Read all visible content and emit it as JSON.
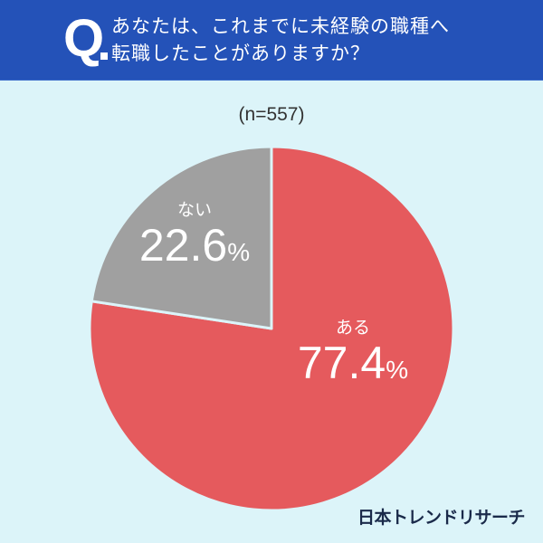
{
  "header": {
    "q_label": "Q",
    "question_line1": "あなたは、これまでに未経験の職種へ",
    "question_line2": "転職したことがありますか？"
  },
  "sample_size": "(n=557)",
  "labels": {
    "no": {
      "name": "ない",
      "value": "22.6",
      "unit": "%"
    },
    "yes": {
      "name": "ある",
      "value": "77.4",
      "unit": "%"
    }
  },
  "brand": "日本トレンドリサーチ",
  "colors": {
    "header": "#2452b8",
    "background": "#dcf4f9",
    "yes": "#e55a5d",
    "no": "#a0a0a0"
  },
  "chart_data": {
    "type": "pie",
    "title": "あなたは、これまでに未経験の職種へ転職したことがありますか？",
    "subtitle": "(n=557)",
    "categories": [
      "ある",
      "ない"
    ],
    "values": [
      77.4,
      22.6
    ],
    "unit": "%",
    "colors": [
      "#e55a5d",
      "#a0a0a0"
    ],
    "start_angle": "12 o'clock, clockwise",
    "legend": "none (labels inside slices)",
    "source": "日本トレンドリサーチ"
  }
}
